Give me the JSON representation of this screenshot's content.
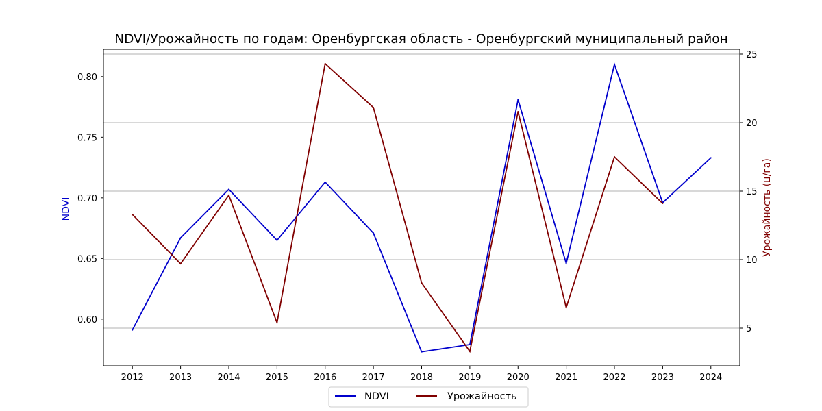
{
  "chart_data": {
    "type": "line",
    "title": "NDVI/Урожайность по годам: Оренбургская область - Оренбургский муниципальный район",
    "x": [
      2012,
      2013,
      2014,
      2015,
      2016,
      2017,
      2018,
      2019,
      2020,
      2021,
      2022,
      2023,
      2024
    ],
    "x_tick_labels": [
      "2012",
      "2013",
      "2014",
      "2015",
      "2016",
      "2017",
      "2018",
      "2019",
      "2020",
      "2021",
      "2022",
      "2023",
      "2024"
    ],
    "xlim": [
      2011.4,
      2024.6
    ],
    "axes": {
      "left": {
        "label": "NDVI",
        "color": "#0000cc",
        "ylim": [
          0.5615,
          0.8225
        ],
        "ticks": [
          0.6,
          0.65,
          0.7,
          0.75,
          0.8
        ],
        "tick_labels": [
          "0.60",
          "0.65",
          "0.70",
          "0.75",
          "0.80"
        ]
      },
      "right": {
        "label": "Урожайность (ц/га)",
        "color": "#800000",
        "ylim": [
          2.25,
          25.35
        ],
        "ticks": [
          5,
          10,
          15,
          20,
          25
        ],
        "tick_labels": [
          "5",
          "10",
          "15",
          "20",
          "25"
        ]
      }
    },
    "series": [
      {
        "name": "NDVI",
        "axis": "left",
        "color": "#0000cc",
        "values": [
          0.591,
          0.667,
          0.707,
          0.665,
          0.713,
          0.671,
          0.573,
          0.579,
          0.781,
          0.646,
          0.81,
          0.696,
          0.733
        ]
      },
      {
        "name": "Урожайность",
        "axis": "right",
        "color": "#800000",
        "values": [
          13.3,
          9.7,
          14.7,
          5.4,
          24.3,
          21.1,
          8.3,
          3.3,
          20.8,
          6.5,
          17.5,
          14.1,
          null
        ]
      }
    ],
    "grid": "horizontal (right axis)",
    "legend": "bottom-center",
    "axis_color": "#000000",
    "grid_color": "#b0b0b0"
  }
}
